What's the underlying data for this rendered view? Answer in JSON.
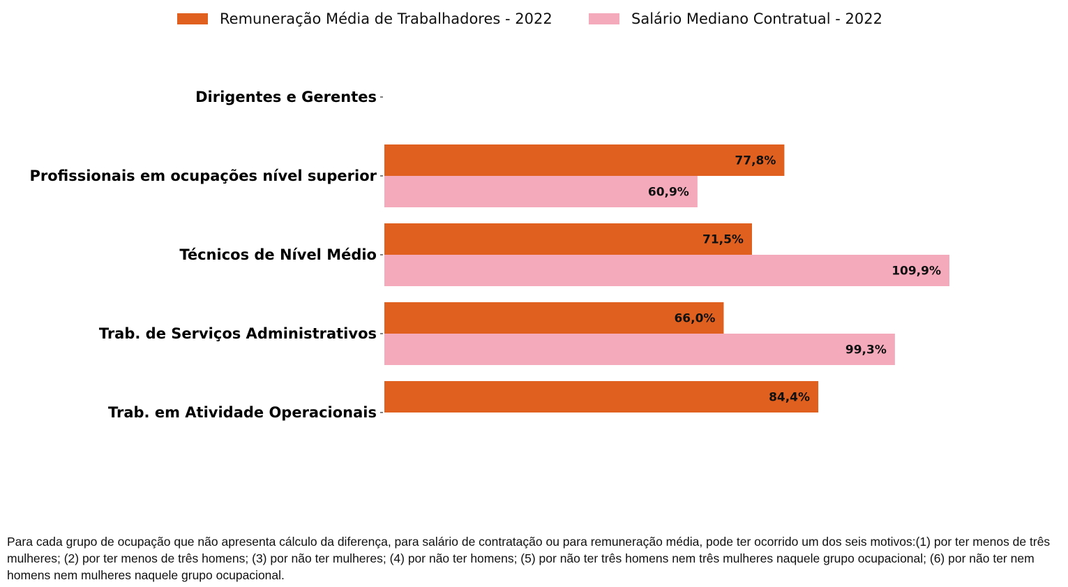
{
  "chart_data": {
    "type": "bar",
    "orientation": "horizontal",
    "categories": [
      "Dirigentes e Gerentes",
      "Profissionais em ocupações nível superior",
      "Técnicos de Nível Médio",
      "Trab. de Serviços Administrativos",
      "Trab. em Atividade Operacionais"
    ],
    "series": [
      {
        "name": "Remuneração Média de Trabalhadores - 2022",
        "color": "#e06020",
        "values": [
          null,
          77.8,
          71.5,
          66.0,
          84.4
        ],
        "labels": [
          "",
          "77,8%",
          "71,5%",
          "66,0%",
          "84,4%"
        ]
      },
      {
        "name": "Salário Mediano Contratual - 2022",
        "color": "#f4aabb",
        "values": [
          null,
          60.9,
          109.9,
          99.3,
          null
        ],
        "labels": [
          "",
          "60,9%",
          "109,9%",
          "99,3%",
          ""
        ]
      }
    ],
    "xlim": [
      0,
      132
    ],
    "legend_position": "top-center",
    "grid": false,
    "x_axis_visible": false
  },
  "footnote": "Para cada grupo de ocupação que não apresenta cálculo da diferença, para salário de contratação ou para remuneração média, pode ter ocorrido um dos seis motivos:(1) por ter menos de três mulheres; (2) por ter menos de três homens; (3) por não ter mulheres; (4) por não ter homens; (5) por não ter três homens nem três mulheres naquele grupo ocupacional; (6) por não ter nem homens nem mulheres naquele grupo ocupacional."
}
